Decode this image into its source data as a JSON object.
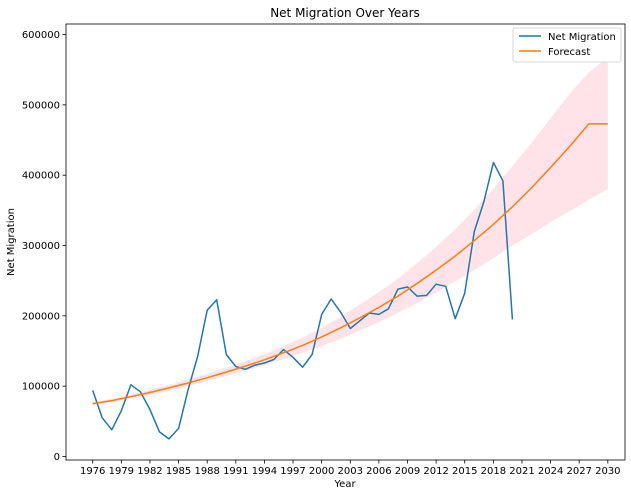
{
  "chart_data": {
    "type": "line",
    "title": "Net Migration Over Years",
    "xlabel": "Year",
    "ylabel": "Net Migration",
    "xlim": [
      1973.2,
      2031.8
    ],
    "ylim": [
      -5000,
      615000
    ],
    "x_ticks": [
      1976,
      1979,
      1982,
      1985,
      1988,
      1991,
      1994,
      1997,
      2000,
      2003,
      2006,
      2009,
      2012,
      2015,
      2018,
      2021,
      2024,
      2027,
      2030
    ],
    "y_ticks": [
      0,
      100000,
      200000,
      300000,
      400000,
      500000,
      600000
    ],
    "grid": false,
    "legend_position": "top-right",
    "series": [
      {
        "name": "Net Migration",
        "color": "#1f77b4",
        "x": [
          1976,
          1977,
          1978,
          1979,
          1980,
          1981,
          1982,
          1983,
          1984,
          1985,
          1986,
          1987,
          1988,
          1989,
          1990,
          1991,
          1992,
          1993,
          1994,
          1995,
          1996,
          1997,
          1998,
          1999,
          2000,
          2001,
          2002,
          2003,
          2004,
          2005,
          2006,
          2007,
          2008,
          2009,
          2010,
          2011,
          2012,
          2013,
          2014,
          2015,
          2016,
          2017,
          2018,
          2019,
          2020
        ],
        "values": [
          94000,
          55000,
          38000,
          65000,
          102000,
          92000,
          67000,
          35000,
          25000,
          40000,
          95000,
          142000,
          208000,
          223000,
          145000,
          128000,
          124000,
          130000,
          133000,
          138000,
          152000,
          141000,
          127000,
          145000,
          202000,
          224000,
          205000,
          182000,
          193000,
          204000,
          202000,
          210000,
          238000,
          241000,
          228000,
          229000,
          245000,
          242000,
          196000,
          232000,
          320000,
          362000,
          418000,
          392000,
          195000
        ]
      },
      {
        "name": "Forecast",
        "color": "#ff7f0e",
        "x": [
          1976,
          1978,
          1980,
          1982,
          1984,
          1986,
          1988,
          1990,
          1992,
          1994,
          1996,
          1998,
          2000,
          2002,
          2004,
          2006,
          2008,
          2010,
          2012,
          2014,
          2016,
          2018,
          2020,
          2022,
          2024,
          2026,
          2028,
          2030
        ],
        "values": [
          75000,
          79500,
          85000,
          91000,
          97500,
          104500,
          112000,
          120000,
          128500,
          137500,
          147500,
          158000,
          170000,
          183000,
          197000,
          212000,
          228000,
          246000,
          265000,
          285000,
          307000,
          330000,
          355000,
          382000,
          411000,
          441000,
          473000,
          473000
        ],
        "ci_lower": [
          73000,
          77000,
          82000,
          87500,
          93500,
          100000,
          107000,
          114500,
          122000,
          130000,
          138500,
          147500,
          157000,
          167500,
          179000,
          191000,
          204000,
          218000,
          233000,
          249000,
          265000,
          282000,
          300000,
          316000,
          333000,
          349000,
          365000,
          380000
        ],
        "ci_upper": [
          77000,
          82000,
          88000,
          95000,
          102000,
          109500,
          117500,
          126000,
          135500,
          145500,
          156500,
          169000,
          183000,
          199000,
          216000,
          234000,
          253000,
          275000,
          298000,
          323000,
          351000,
          381000,
          413000,
          446000,
          481000,
          516000,
          546000,
          568000
        ],
        "band_color": "#ffc0cb"
      }
    ]
  }
}
